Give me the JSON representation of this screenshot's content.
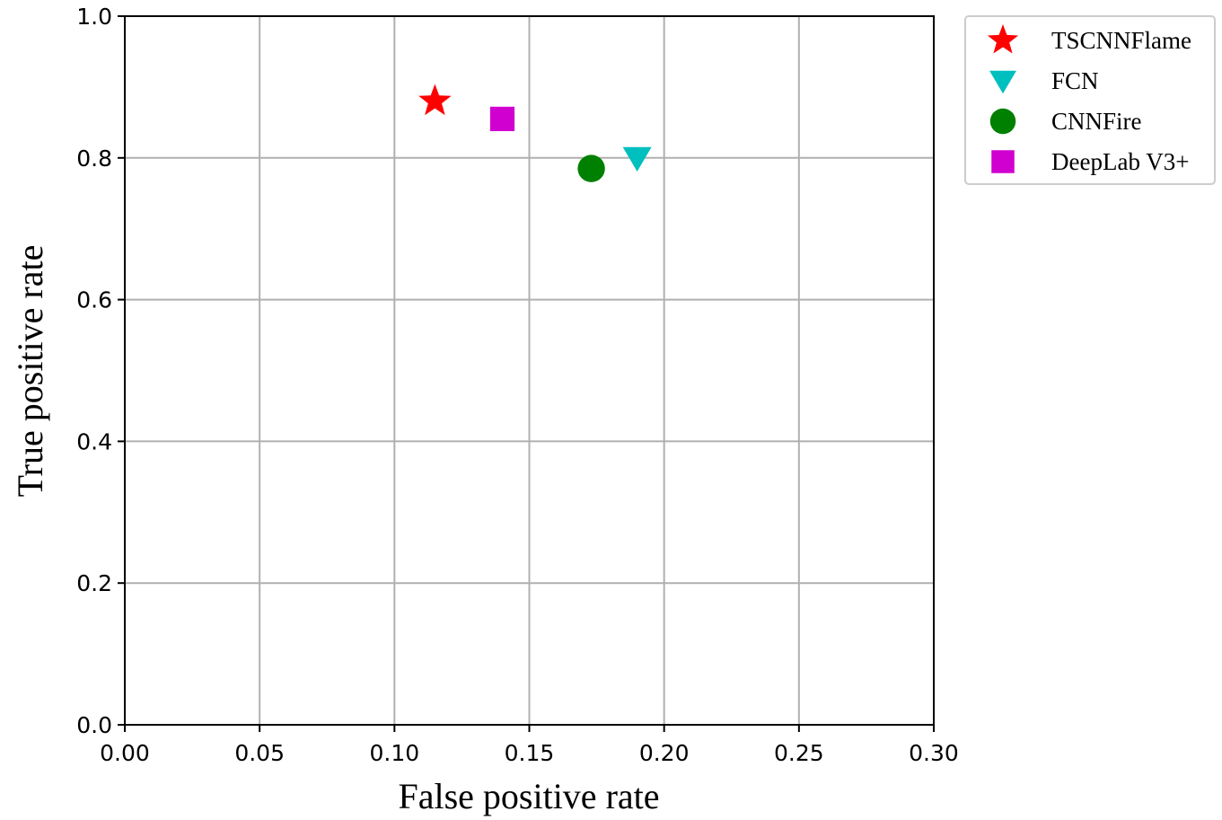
{
  "chart_data": {
    "type": "scatter",
    "title": "",
    "xlabel": "False positive rate",
    "ylabel": "True positive rate",
    "xlim": [
      0.0,
      0.3
    ],
    "ylim": [
      0.0,
      1.0
    ],
    "xticks": [
      0.0,
      0.05,
      0.1,
      0.15,
      0.2,
      0.25,
      0.3
    ],
    "xtick_labels": [
      "0.00",
      "0.05",
      "0.10",
      "0.15",
      "0.20",
      "0.25",
      "0.30"
    ],
    "yticks": [
      0.0,
      0.2,
      0.4,
      0.6,
      0.8,
      1.0
    ],
    "ytick_labels": [
      "0.0",
      "0.2",
      "0.4",
      "0.6",
      "0.8",
      "1.0"
    ],
    "grid": true,
    "legend_position": "outside-top-right",
    "series": [
      {
        "name": "TSCNNFlame",
        "marker": "star",
        "color": "#ff0000",
        "x": 0.115,
        "y": 0.88
      },
      {
        "name": "FCN",
        "marker": "triangle-down",
        "color": "#00bfbf",
        "x": 0.19,
        "y": 0.8
      },
      {
        "name": "CNNFire",
        "marker": "circle",
        "color": "#008000",
        "x": 0.173,
        "y": 0.785
      },
      {
        "name": "DeepLab V3+",
        "marker": "square",
        "color": "#d000d0",
        "x": 0.14,
        "y": 0.855
      }
    ]
  }
}
